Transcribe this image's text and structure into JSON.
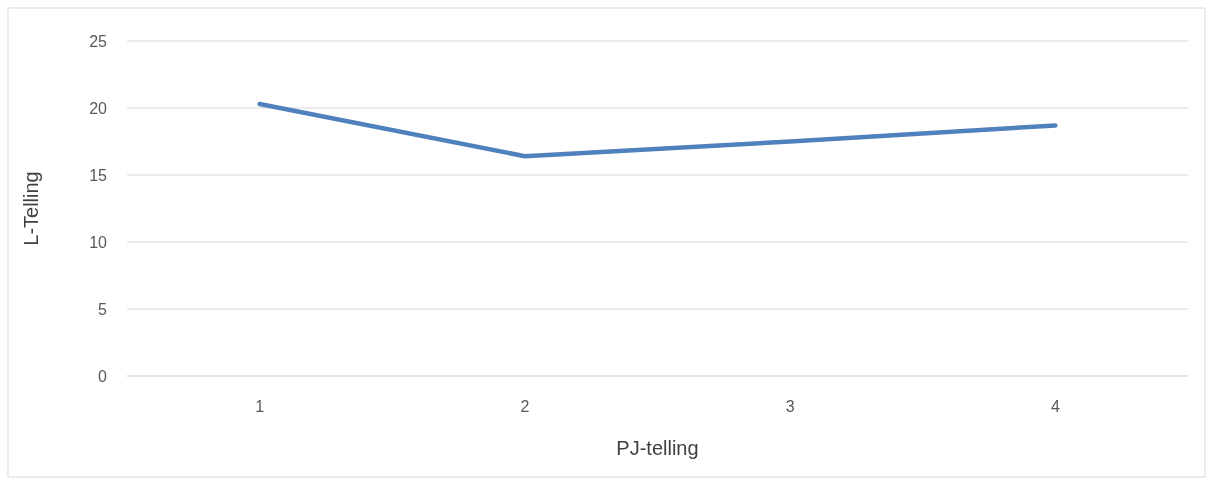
{
  "chart_data": {
    "type": "line",
    "xlabel": "PJ-telling",
    "ylabel": "L-Telling",
    "categories": [
      "1",
      "2",
      "3",
      "4"
    ],
    "series": [
      {
        "color": "#4f81bd",
        "values": [
          20.3,
          16.4,
          17.5,
          18.7
        ]
      }
    ],
    "ylim": [
      0,
      25
    ],
    "yticks": [
      0,
      5,
      10,
      15,
      20,
      25
    ],
    "grid": "y",
    "marker": "none",
    "line_style": "solid"
  }
}
